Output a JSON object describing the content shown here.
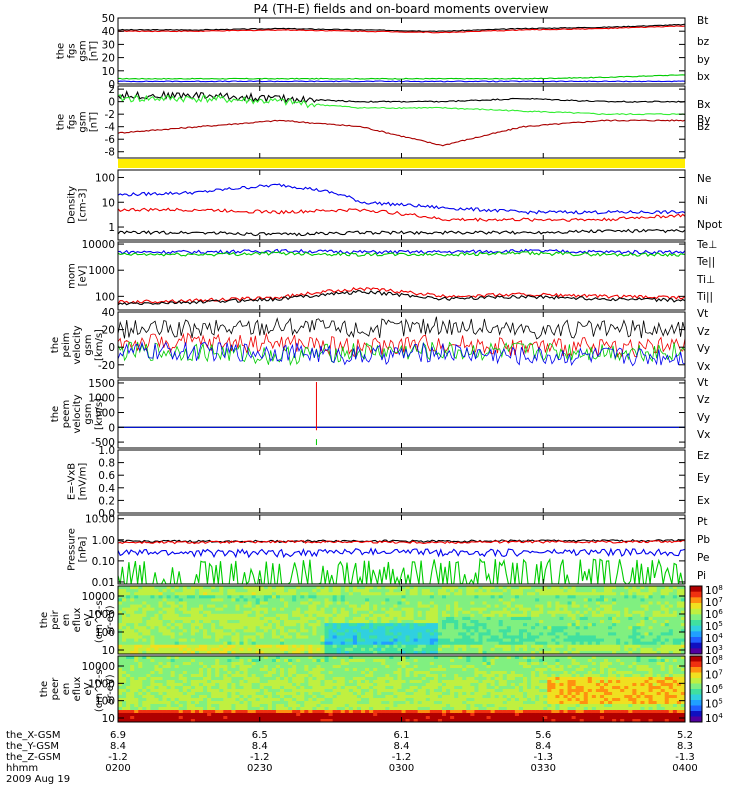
{
  "title": "P4 (TH-E) fields and on-board moments overview",
  "colors": {
    "black": "#000000",
    "red": "#ee0000",
    "green": "#00cc00",
    "blue": "#0000ee",
    "darkred": "#aa0000",
    "lightgreen": "#33ee33",
    "yellow": "#ffee00"
  },
  "chart_data": [
    {
      "type": "line",
      "ylabel": [
        "the",
        "fgs",
        "gsm",
        "[nT]"
      ],
      "ylim": [
        0,
        50
      ],
      "yticks": [
        "0",
        "10",
        "20",
        "30",
        "40",
        "50"
      ],
      "legend": [
        "Bt",
        "bz",
        "by",
        "bx"
      ],
      "series": [
        {
          "name": "Bt",
          "color": "#000000",
          "values": [
            41,
            41,
            42,
            41,
            40,
            42,
            43,
            45
          ]
        },
        {
          "name": "bz",
          "color": "#ee0000",
          "values": [
            40,
            40,
            41,
            40,
            39,
            41,
            42,
            44
          ]
        },
        {
          "name": "by",
          "color": "#00cc00",
          "values": [
            4,
            4,
            4,
            4,
            4,
            4,
            5,
            7
          ]
        },
        {
          "name": "bx",
          "color": "#0000ee",
          "values": [
            2,
            2,
            2,
            2,
            2,
            2,
            2,
            2
          ]
        }
      ]
    },
    {
      "type": "line",
      "ylabel": [
        "the",
        "fgs",
        "gsm",
        "[nT]"
      ],
      "ylim": [
        -9,
        2.5
      ],
      "yticks": [
        "-8",
        "-6",
        "-4",
        "-2",
        "0",
        "2"
      ],
      "legend": [
        "Bx",
        "By",
        "Bz"
      ],
      "series": [
        {
          "name": "Bx",
          "color": "#000000",
          "values": [
            1,
            1,
            0.5,
            0,
            0,
            0.5,
            0,
            0
          ]
        },
        {
          "name": "By",
          "color": "#33ee33",
          "values": [
            0.5,
            0.5,
            0,
            -1,
            -1,
            -1.5,
            -2,
            -2
          ]
        },
        {
          "name": "Bz",
          "color": "#aa0000",
          "values": [
            -5,
            -4,
            -3,
            -4,
            -7,
            -4,
            -3,
            -3
          ]
        }
      ]
    },
    {
      "type": "line",
      "ylabel": [
        "Density",
        "[cm-3]"
      ],
      "ylim": [
        0.3,
        200
      ],
      "yscale": "log",
      "yticks": [
        "1",
        "10",
        "100"
      ],
      "legend": [
        "Ne",
        "Ni",
        "Npot"
      ],
      "series": [
        {
          "name": "Ne",
          "color": "#ee0000",
          "values": [
            5,
            5,
            4,
            5,
            2,
            2,
            2,
            3
          ]
        },
        {
          "name": "Ni",
          "color": "#000000",
          "values": [
            0.6,
            0.6,
            0.5,
            0.6,
            0.6,
            0.6,
            0.7,
            0.7
          ]
        },
        {
          "name": "Npot",
          "color": "#0000ee",
          "values": [
            20,
            25,
            50,
            10,
            6,
            4,
            4,
            4
          ]
        }
      ]
    },
    {
      "type": "line",
      "ylabel": [
        "mom",
        "[eV]"
      ],
      "ylim": [
        30,
        12000
      ],
      "yscale": "log",
      "yticks": [
        "100",
        "1000",
        "10000"
      ],
      "legend": [
        "Te⊥",
        "Te||",
        "Ti⊥",
        "Ti||"
      ],
      "series": [
        {
          "name": "Te⊥",
          "color": "#ee0000",
          "values": [
            60,
            70,
            90,
            200,
            100,
            120,
            100,
            90
          ]
        },
        {
          "name": "Te||",
          "color": "#000000",
          "values": [
            50,
            60,
            80,
            150,
            80,
            100,
            80,
            70
          ]
        },
        {
          "name": "Ti⊥",
          "color": "#0000ee",
          "values": [
            5000,
            5000,
            5500,
            5000,
            5000,
            5500,
            5000,
            5000
          ]
        },
        {
          "name": "Ti||",
          "color": "#00cc00",
          "values": [
            4000,
            4000,
            4500,
            4000,
            4000,
            4500,
            4000,
            4000
          ]
        }
      ]
    },
    {
      "type": "line",
      "ylabel": [
        "the",
        "peim",
        "velocity",
        "gsm",
        "[km/s]"
      ],
      "ylim": [
        -35,
        40
      ],
      "yticks": [
        "-20",
        "0",
        "20",
        "40"
      ],
      "legend": [
        "Vt",
        "Vz",
        "Vy",
        "Vx"
      ],
      "series": [
        {
          "name": "Vt",
          "color": "#000000",
          "values": [
            20,
            20,
            25,
            20,
            25,
            20,
            20,
            20
          ]
        },
        {
          "name": "Vz",
          "color": "#ee0000",
          "values": [
            5,
            5,
            5,
            0,
            5,
            0,
            0,
            0
          ]
        },
        {
          "name": "Vy",
          "color": "#00cc00",
          "values": [
            -5,
            -5,
            -10,
            -5,
            -5,
            -5,
            -5,
            -5
          ]
        },
        {
          "name": "Vx",
          "color": "#0000ee",
          "values": [
            -5,
            -5,
            -5,
            -10,
            -5,
            -10,
            -10,
            -10
          ]
        }
      ]
    },
    {
      "type": "line",
      "ylabel": [
        "the",
        "peem",
        "velocity",
        "gsm",
        "[km/s]"
      ],
      "ylim": [
        -700,
        1600
      ],
      "yticks": [
        "-500",
        "0",
        "500",
        "1000",
        "1500"
      ],
      "legend": [
        "Vt",
        "Vz",
        "Vy",
        "Vx"
      ],
      "series": [
        {
          "name": "Vt",
          "color": "#000000",
          "values": [
            0,
            0,
            0,
            0,
            0,
            0,
            0,
            0
          ]
        },
        {
          "name": "Vz",
          "color": "#ee0000",
          "values": [
            0,
            0,
            0,
            0,
            0,
            0,
            0,
            0
          ]
        },
        {
          "name": "Vy",
          "color": "#00cc00",
          "values": [
            0,
            0,
            0,
            0,
            0,
            0,
            0,
            0
          ]
        },
        {
          "name": "Vx",
          "color": "#0000ee",
          "values": [
            0,
            0,
            0,
            0,
            0,
            0,
            0,
            0
          ]
        }
      ]
    },
    {
      "type": "line",
      "ylabel": [
        "E=-VxB",
        "[mV/m]"
      ],
      "ylim": [
        0,
        1
      ],
      "yticks": [
        "0.0",
        "0.2",
        "0.4",
        "0.6",
        "0.8",
        "1.0"
      ],
      "legend": [
        "Ez",
        "Ey",
        "Ex"
      ],
      "series": []
    },
    {
      "type": "line",
      "ylabel": [
        "Pressure",
        "[nPa]"
      ],
      "ylim": [
        0.008,
        15
      ],
      "yscale": "log",
      "yticks": [
        "0.01",
        "0.10",
        "1.00",
        "10.00"
      ],
      "legend": [
        "Pt",
        "Pb",
        "Pe",
        "Pi"
      ],
      "series": [
        {
          "name": "Pt",
          "color": "#000000",
          "values": [
            0.85,
            0.85,
            0.85,
            0.9,
            0.85,
            0.9,
            0.9,
            0.95
          ]
        },
        {
          "name": "Pb",
          "color": "#ee0000",
          "values": [
            0.75,
            0.75,
            0.8,
            0.8,
            0.75,
            0.8,
            0.8,
            0.85
          ]
        },
        {
          "name": "Pe",
          "color": "#00cc00",
          "values": [
            0.012,
            0.013,
            0.014,
            0.016,
            0.02,
            0.02,
            0.022,
            0.022
          ]
        },
        {
          "name": "Pi",
          "color": "#0000ee",
          "values": [
            0.25,
            0.25,
            0.25,
            0.28,
            0.27,
            0.26,
            0.27,
            0.27
          ]
        }
      ]
    },
    {
      "type": "heatmap",
      "ylabel": [
        "the",
        "peir",
        "en",
        "eflux",
        "eV",
        "(cm^2-s-",
        "sr-eV)"
      ],
      "yscale": "log",
      "yticks": [
        "10",
        "100",
        "1000",
        "10000"
      ],
      "colorbar": [
        "10^3",
        "10^4",
        "10^5",
        "10^6",
        "10^7",
        "10^8"
      ]
    },
    {
      "type": "heatmap",
      "ylabel": [
        "the",
        "peer",
        "en",
        "eflux",
        "eV",
        "(cm^2-s-",
        "sr-eV)"
      ],
      "yscale": "log",
      "yticks": [
        "10",
        "100",
        "1000",
        "10000"
      ],
      "colorbar": [
        "10^4",
        "10^5",
        "10^6",
        "10^7",
        "10^8"
      ]
    }
  ],
  "xaxis": {
    "rows": [
      {
        "name": "the_X-GSM",
        "values": [
          "6.9",
          "6.5",
          "6.1",
          "5.6",
          "5.2"
        ]
      },
      {
        "name": "the_Y-GSM",
        "values": [
          "8.4",
          "8.4",
          "8.4",
          "8.4",
          "8.3"
        ]
      },
      {
        "name": "the_Z-GSM",
        "values": [
          "-1.2",
          "-1.2",
          "-1.2",
          "-1.3",
          "-1.3"
        ]
      },
      {
        "name": "hhmm",
        "values": [
          "0200",
          "0230",
          "0300",
          "0330",
          "0400"
        ]
      }
    ],
    "date": "2009 Aug 19"
  }
}
